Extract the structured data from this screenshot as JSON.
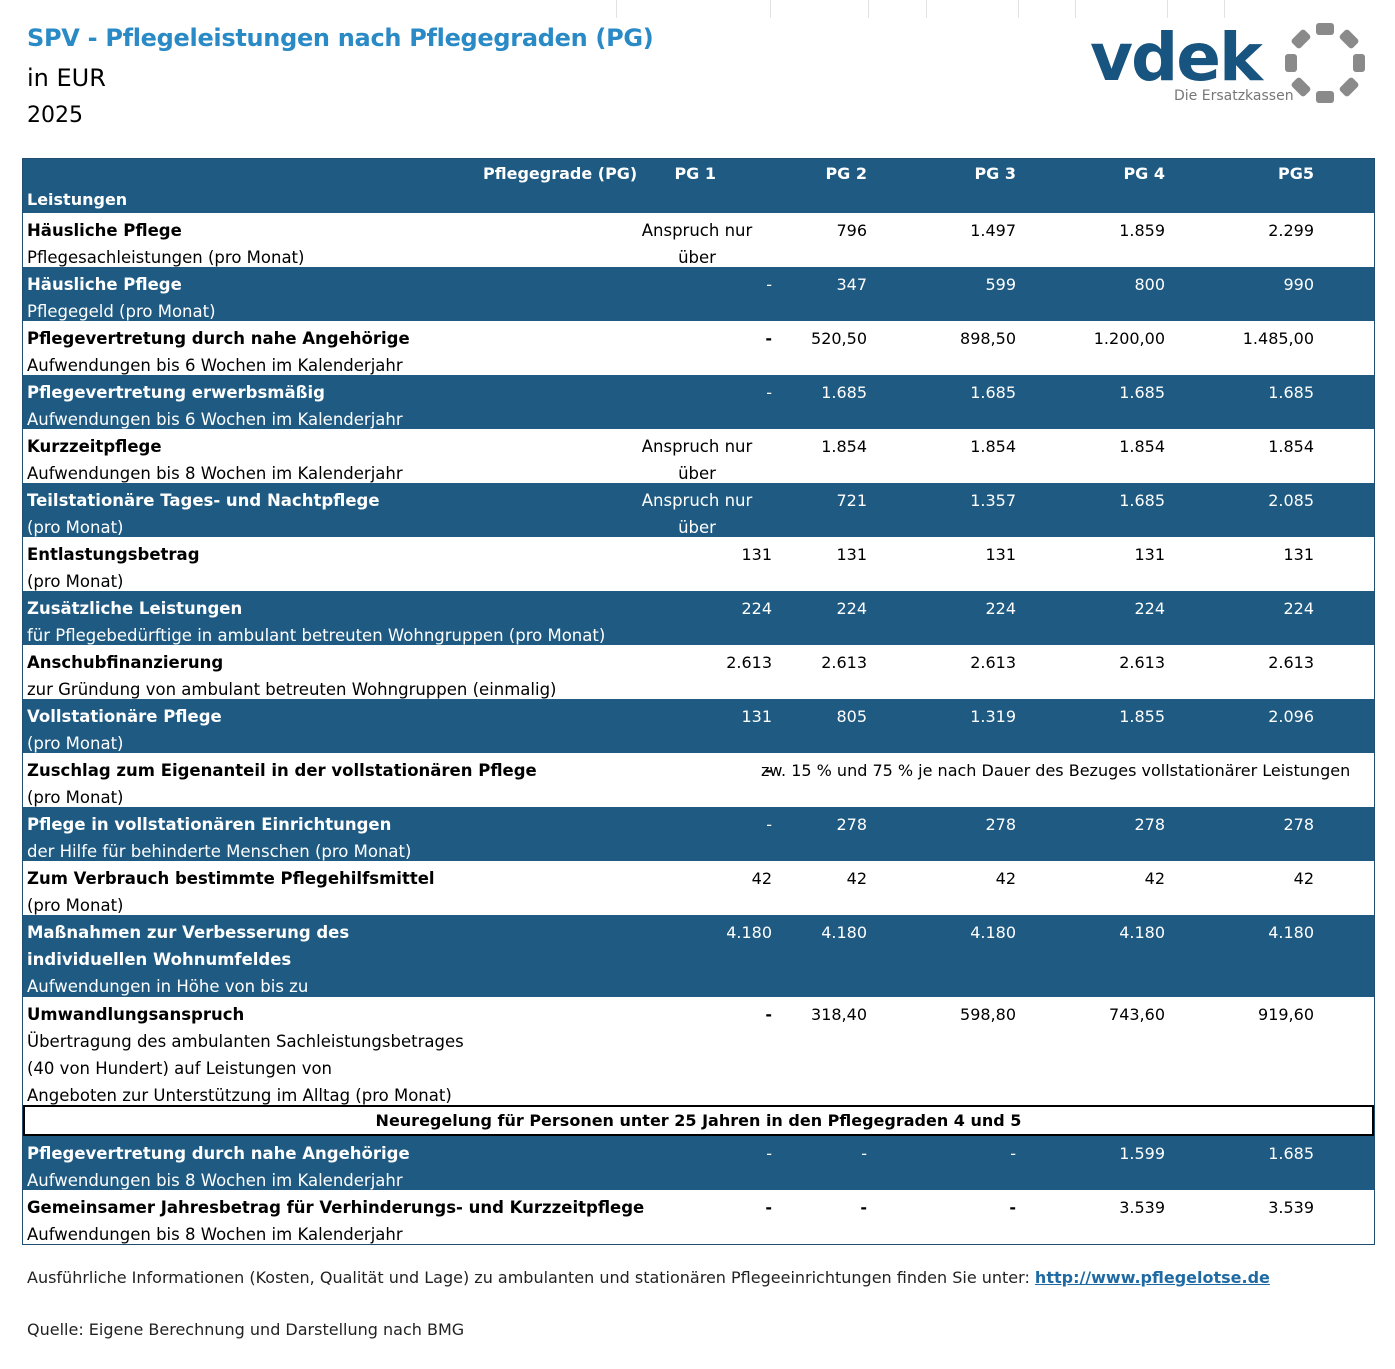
{
  "header": {
    "title": "SPV - Pflegeleistungen nach Pflegegraden (PG)",
    "unit": "in EUR",
    "year": "2025"
  },
  "logo": {
    "wordmark": "vdek",
    "tagline": "Die Ersatzkassen",
    "brand_color": "#17547f",
    "ring_color": "#8a8a8a"
  },
  "colors": {
    "band_blue": "#1e5a82",
    "title_blue": "#2a8ac6",
    "link": "#1f6aa3"
  },
  "table": {
    "corner_top": "Pflegegrade (PG)",
    "corner_bottom": "Leistungen",
    "columns": [
      "PG 1",
      "PG 2",
      "PG 3",
      "PG 4",
      "PG5"
    ],
    "rows": [
      {
        "title": "Häusliche Pflege",
        "sub": "Pflegesachleistungen (pro Monat)",
        "v": [
          "Anspruch nur über Entlastungsbetrag",
          "796",
          "1.497",
          "1.859",
          "2.299"
        ]
      },
      {
        "title": "Häusliche Pflege",
        "sub": "Pflegegeld (pro Monat)",
        "v": [
          "-",
          "347",
          "599",
          "800",
          "990"
        ]
      },
      {
        "title": "Pflegevertretung durch nahe Angehörige",
        "sub": "Aufwendungen bis 6 Wochen im Kalenderjahr",
        "v": [
          "-",
          "520,50",
          "898,50",
          "1.200,00",
          "1.485,00"
        ]
      },
      {
        "title": "Pflegevertretung erwerbsmäßig",
        "sub": "Aufwendungen bis 6 Wochen im Kalenderjahr",
        "v": [
          "-",
          "1.685",
          "1.685",
          "1.685",
          "1.685"
        ]
      },
      {
        "title": "Kurzzeitpflege",
        "sub": "Aufwendungen bis 8 Wochen im Kalenderjahr",
        "v": [
          "Anspruch nur über Entlastungsbetrag",
          "1.854",
          "1.854",
          "1.854",
          "1.854"
        ]
      },
      {
        "title": "Teilstationäre Tages- und Nachtpflege",
        "sub": "(pro Monat)",
        "v": [
          "Anspruch nur über Entlastungsbetrag",
          "721",
          "1.357",
          "1.685",
          "2.085"
        ]
      },
      {
        "title": "Entlastungsbetrag",
        "sub": "(pro Monat)",
        "v": [
          "131",
          "131",
          "131",
          "131",
          "131"
        ]
      },
      {
        "title": "Zusätzliche Leistungen",
        "sub": "für Pflegebedürftige in ambulant betreuten Wohngruppen (pro Monat)",
        "v": [
          "224",
          "224",
          "224",
          "224",
          "224"
        ]
      },
      {
        "title": "Anschubfinanzierung",
        "sub": "zur Gründung von ambulant betreuten Wohngruppen (einmalig)",
        "v": [
          "2.613",
          "2.613",
          "2.613",
          "2.613",
          "2.613"
        ]
      },
      {
        "title": "Vollstationäre Pflege",
        "sub": "(pro Monat)",
        "v": [
          "131",
          "805",
          "1.319",
          "1.855",
          "2.096"
        ]
      },
      {
        "title": "Zuschlag zum Eigenanteil in der vollstationären Pflege",
        "sub": "(pro Monat)",
        "pg1": "-",
        "span": "zw. 15 % und 75 % je nach Dauer des Bezuges vollstationärer Leistungen"
      },
      {
        "title": "Pflege in vollstationären Einrichtungen",
        "sub": "der Hilfe für behinderte Menschen (pro Monat)",
        "v": [
          "-",
          "278",
          "278",
          "278",
          "278"
        ]
      },
      {
        "title": "Zum Verbrauch bestimmte Pflegehilfsmittel",
        "sub": "(pro Monat)",
        "v": [
          "42",
          "42",
          "42",
          "42",
          "42"
        ]
      },
      {
        "title": "Maßnahmen zur Verbesserung des",
        "title2": "individuellen Wohnumfeldes",
        "sub": "Aufwendungen in Höhe von bis zu",
        "v": [
          "4.180",
          "4.180",
          "4.180",
          "4.180",
          "4.180"
        ]
      },
      {
        "title": "Umwandlungsanspruch",
        "sub": "Übertragung des ambulanten Sachleistungsbetrages",
        "sub2": "(40 von Hundert) auf Leistungen von",
        "sub3": "Angeboten zur Unterstützung im Alltag (pro Monat)",
        "v": [
          "-",
          "318,40",
          "598,80",
          "743,60",
          "919,60"
        ]
      }
    ],
    "banner": "Neuregelung für Personen unter 25 Jahren in den Pflegegraden 4 und 5",
    "rows2": [
      {
        "title": "Pflegevertretung durch nahe Angehörige",
        "sub": "Aufwendungen bis 8 Wochen im Kalenderjahr",
        "v": [
          "-",
          "-",
          "-",
          "1.599",
          "1.685"
        ]
      },
      {
        "title": "Gemeinsamer Jahresbetrag für Verhinderungs- und Kurzzeitpflege",
        "sub": "Aufwendungen bis 8 Wochen im Kalenderjahr",
        "v": [
          "-",
          "-",
          "-",
          "3.539",
          "3.539"
        ]
      }
    ]
  },
  "footer": {
    "info": "Ausführliche Informationen (Kosten, Qualität und Lage) zu ambulanten und stationären Pflegeeinrichtungen finden Sie unter:",
    "link": "http://www.pflegelotse.de",
    "source": "Quelle: Eigene Berechnung und Darstellung nach BMG"
  }
}
